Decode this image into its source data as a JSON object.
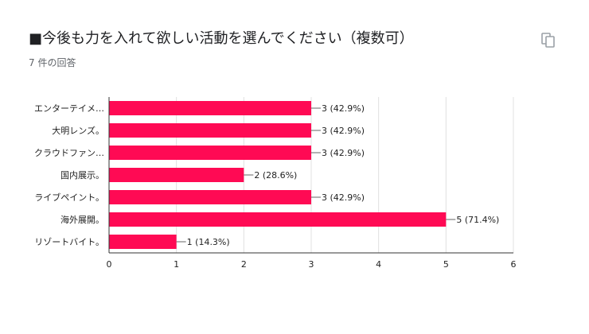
{
  "question": {
    "title": "■今後も力を入れて欲しい活動を選んでください（複数可）",
    "response_count": "7 件の回答"
  },
  "icons": {
    "copy": "copy-icon"
  },
  "colors": {
    "bar": "#ff0a54",
    "grid": "#e0e0e0",
    "axis": "#333333"
  },
  "chart_data": {
    "type": "bar",
    "orientation": "horizontal",
    "categories": [
      "エンターテイメ…",
      "大明レンズ。",
      "クラウドファン…",
      "国内展示。",
      "ライブペイント。",
      "海外展開。",
      "リゾートバイト。"
    ],
    "values": [
      3,
      3,
      3,
      2,
      3,
      5,
      1
    ],
    "data_labels": [
      "3 (42.9%)",
      "3 (42.9%)",
      "3 (42.9%)",
      "2 (28.6%)",
      "3 (42.9%)",
      "5 (71.4%)",
      "1 (14.3%)"
    ],
    "xlim": [
      0,
      6
    ],
    "xticks": [
      "0",
      "1",
      "2",
      "3",
      "4",
      "5",
      "6"
    ],
    "grid": true
  }
}
